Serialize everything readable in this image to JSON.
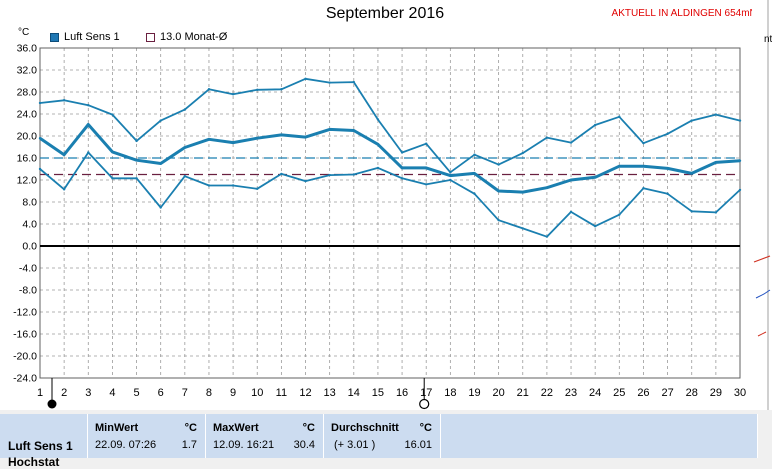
{
  "chart_data": {
    "type": "line",
    "title": "September 2016",
    "ylabel": "°C",
    "ylim": [
      -24,
      36
    ],
    "yticks": [
      "36.0",
      "32.0",
      "28.0",
      "24.0",
      "20.0",
      "16.0",
      "12.0",
      "8.0",
      "4.0",
      "0.0",
      "-4.0",
      "-8.0",
      "-12.0",
      "-16.0",
      "-20.0",
      "-24.0"
    ],
    "x": [
      1,
      2,
      3,
      4,
      5,
      6,
      7,
      8,
      9,
      10,
      11,
      12,
      13,
      14,
      15,
      16,
      17,
      18,
      19,
      20,
      21,
      22,
      23,
      24,
      25,
      26,
      27,
      28,
      29,
      30
    ],
    "series": [
      {
        "name": "",
        "role": "max",
        "color": "#1a7fb0",
        "values": [
          26.0,
          26.5,
          25.6,
          23.9,
          19.1,
          22.8,
          24.8,
          28.5,
          27.6,
          28.4,
          28.5,
          30.4,
          29.7,
          29.8,
          23.0,
          17.0,
          18.6,
          13.4,
          16.6,
          14.8,
          16.9,
          19.7,
          18.8,
          22.0,
          23.5,
          18.7,
          20.4,
          22.8,
          23.9,
          22.8
        ]
      },
      {
        "name": "Luft Sens 1",
        "role": "mean",
        "color": "#1a7fb0",
        "values": [
          19.6,
          16.6,
          22.1,
          17.1,
          15.6,
          15.0,
          17.9,
          19.4,
          18.8,
          19.6,
          20.2,
          19.8,
          21.2,
          21.0,
          18.5,
          14.2,
          14.2,
          12.8,
          13.2,
          10.0,
          9.8,
          10.6,
          12.0,
          12.5,
          14.5,
          14.5,
          14.1,
          13.2,
          15.2,
          15.5
        ]
      },
      {
        "name": "",
        "role": "min",
        "color": "#1a7fb0",
        "values": [
          14.0,
          10.3,
          17.0,
          12.3,
          12.3,
          7.0,
          12.7,
          11.0,
          11.0,
          10.4,
          13.1,
          11.8,
          12.9,
          13.0,
          14.2,
          12.3,
          11.2,
          12.0,
          9.5,
          4.7,
          3.2,
          1.7,
          6.2,
          3.6,
          5.7,
          10.5,
          9.5,
          6.3,
          6.1,
          10.2
        ]
      }
    ],
    "reference_lines": [
      {
        "name": "13.0 Monat-Ø",
        "value": 13.0,
        "color": "#6a2040",
        "style": "dashed"
      },
      {
        "name": "",
        "value": 16.0,
        "color": "#1a7fb0",
        "style": "dashed"
      }
    ],
    "grid": true,
    "legend_position": "top-left"
  },
  "header": {
    "live_link": "AKTUELL IN ALDINGEN 654mNN"
  },
  "legend": {
    "series_label": "Luft Sens 1",
    "reference_label": "13.0 Monat-Ø",
    "series_color": "#1f78b4",
    "reference_color": "#6a2040"
  },
  "stats": {
    "row_label": "Luft Sens 1",
    "row_label_2": "Hochstat",
    "min": {
      "header": "MinWert",
      "unit": "°C",
      "date": "22.09.  07:26",
      "value": "1.7"
    },
    "max": {
      "header": "MaxWert",
      "unit": "°C",
      "date": "12.09.  16:21",
      "value": "30.4"
    },
    "avg": {
      "header": "Durchschnitt",
      "unit": "°C",
      "delta": "(+ 3.01 )",
      "value": "16.01"
    }
  }
}
